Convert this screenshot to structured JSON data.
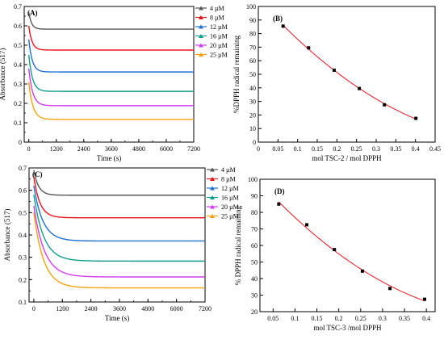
{
  "chart_data": [
    {
      "panel": "(A)",
      "type": "line",
      "xlabel": "Time (s)",
      "ylabel": "Absorbance (517)",
      "xlim": [
        -200,
        7200
      ],
      "ylim": [
        0,
        0.7
      ],
      "xticks": [
        0,
        1200,
        2400,
        3600,
        4800,
        6000,
        7200
      ],
      "yticks": [
        0,
        0.1,
        0.2,
        0.3,
        0.4,
        0.5,
        0.6,
        0.7
      ],
      "legend_position": "top-right",
      "series": [
        {
          "name": "4 µM",
          "color": "#555555",
          "start": 0.67,
          "plateau": 0.583,
          "tau": 120
        },
        {
          "name": "8 µM",
          "color": "#e8141c",
          "start": 0.6,
          "plateau": 0.475,
          "tau": 140
        },
        {
          "name": "12 µM",
          "color": "#1f6fd1",
          "start": 0.53,
          "plateau": 0.362,
          "tau": 150
        },
        {
          "name": "16 µM",
          "color": "#129e8a",
          "start": 0.45,
          "plateau": 0.262,
          "tau": 160
        },
        {
          "name": "20 µM",
          "color": "#d23cf0",
          "start": 0.38,
          "plateau": 0.188,
          "tau": 170
        },
        {
          "name": "25 µM",
          "color": "#f2a20c",
          "start": 0.31,
          "plateau": 0.117,
          "tau": 180
        }
      ]
    },
    {
      "panel": "(B)",
      "type": "scatter",
      "xlabel": "mol TSC-2 / mol DPPH",
      "ylabel": "%DPPH radical remaining",
      "xlim": [
        0,
        0.45
      ],
      "ylim": [
        0,
        100
      ],
      "xticks": [
        0,
        0.05,
        0.1,
        0.15,
        0.2,
        0.25,
        0.3,
        0.35,
        0.4,
        0.45
      ],
      "yticks": [
        0,
        10,
        20,
        30,
        40,
        50,
        60,
        70,
        80,
        90,
        100
      ],
      "x": [
        0.063,
        0.128,
        0.193,
        0.257,
        0.321,
        0.401
      ],
      "y": [
        85.5,
        69.5,
        53.0,
        39.5,
        27.5,
        17.5
      ],
      "marker_color": "#000000",
      "fit_color": "#e8141c"
    },
    {
      "panel": "(C)",
      "type": "line",
      "xlabel": "Time (s)",
      "ylabel": "Absorbance (517)",
      "xlim": [
        -200,
        7200
      ],
      "ylim": [
        0.1,
        0.7
      ],
      "xticks": [
        0,
        1200,
        2400,
        3600,
        4800,
        6000,
        7200
      ],
      "yticks": [
        0.1,
        0.2,
        0.3,
        0.4,
        0.5,
        0.6,
        0.7
      ],
      "legend_position": "top-right",
      "series": [
        {
          "name": "4 µM",
          "color": "#555555",
          "start": 0.69,
          "plateau": 0.578,
          "tau": 200
        },
        {
          "name": "8 µM",
          "color": "#e8141c",
          "start": 0.66,
          "plateau": 0.477,
          "tau": 260
        },
        {
          "name": "12 µM",
          "color": "#1f6fd1",
          "start": 0.62,
          "plateau": 0.373,
          "tau": 380
        },
        {
          "name": "16 µM",
          "color": "#129e8a",
          "start": 0.58,
          "plateau": 0.283,
          "tau": 420
        },
        {
          "name": "20 µM",
          "color": "#d23cf0",
          "start": 0.53,
          "plateau": 0.212,
          "tau": 450
        },
        {
          "name": "25 µM",
          "color": "#f2a20c",
          "start": 0.5,
          "plateau": 0.163,
          "tau": 420
        }
      ]
    },
    {
      "panel": "(D)",
      "type": "scatter",
      "xlabel": "mol TSC-3 /mol DPPH",
      "ylabel": "% DPPH radical remaining",
      "xlim": [
        0.02,
        0.42
      ],
      "ylim": [
        20,
        100
      ],
      "xticks": [
        0.05,
        0.1,
        0.15,
        0.2,
        0.25,
        0.3,
        0.35,
        0.4
      ],
      "yticks": [
        20,
        30,
        40,
        50,
        60,
        70,
        80,
        90,
        100
      ],
      "x": [
        0.063,
        0.127,
        0.19,
        0.254,
        0.317,
        0.396
      ],
      "y": [
        85.0,
        72.5,
        57.5,
        44.5,
        34.0,
        27.5
      ],
      "marker_color": "#000000",
      "fit_color": "#e8141c"
    }
  ]
}
